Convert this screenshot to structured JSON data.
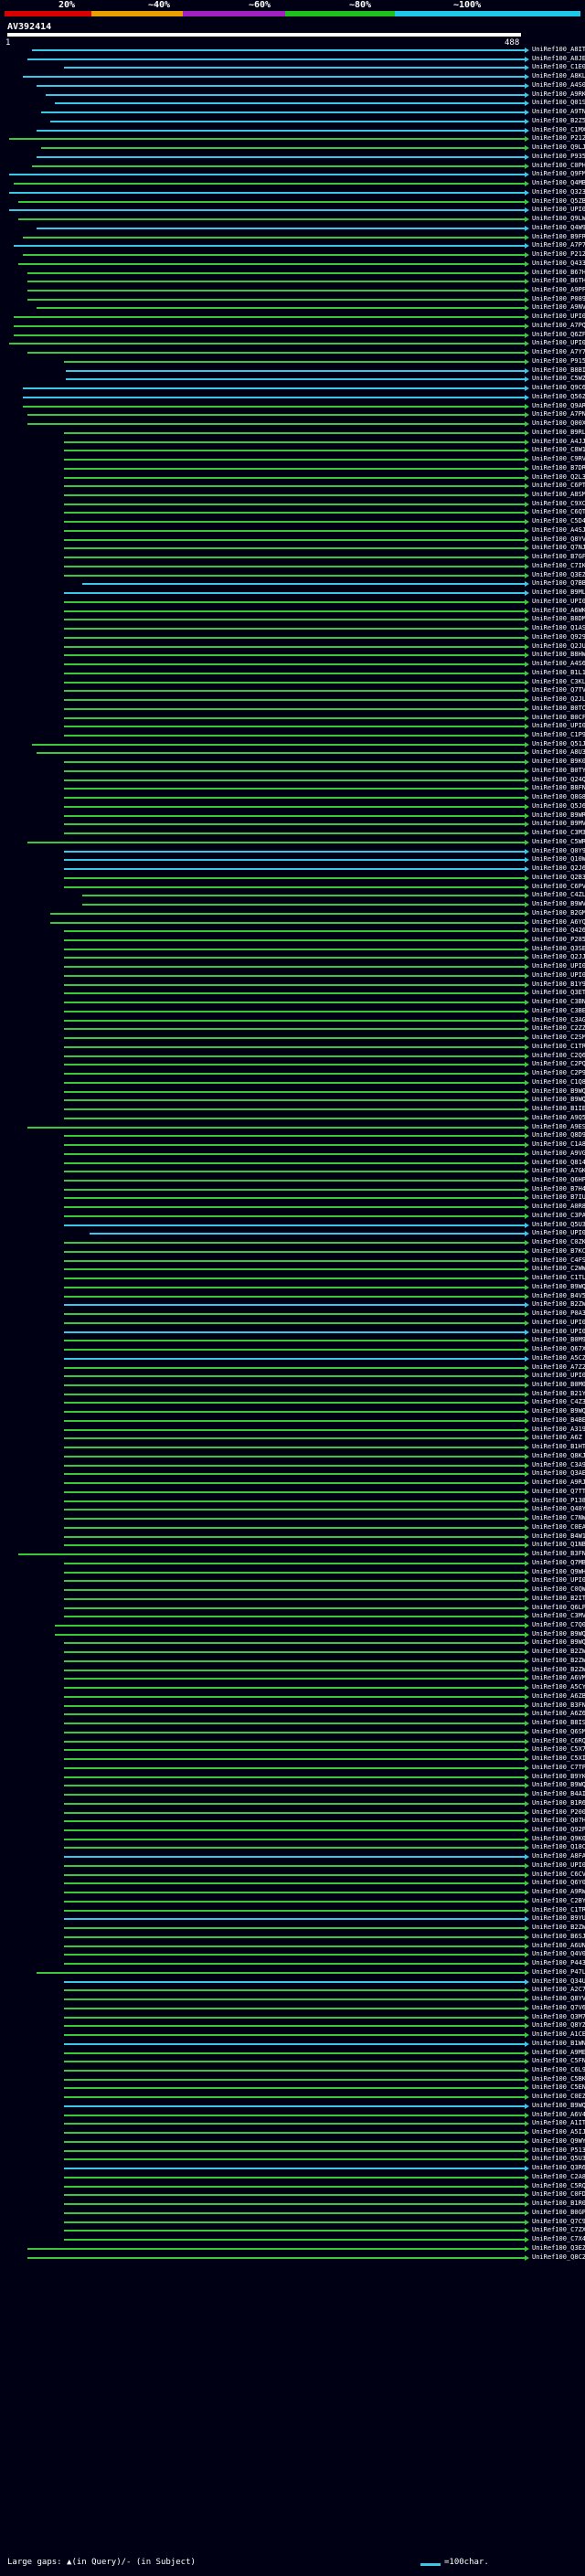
{
  "scale": {
    "labels": [
      "20%",
      "~40%",
      "~60%",
      "~80%",
      "~100%"
    ],
    "colors": [
      "#d80000",
      "#e8a000",
      "#a020c0",
      "#20c020",
      "#20c8e8"
    ]
  },
  "query": {
    "title": "AV392414",
    "start": "1",
    "end": "488"
  },
  "hit_colors": {
    "high": "#3bc8e6",
    "mid": "#3cc83c"
  },
  "hits": [
    "UniRef100_A8ITH8",
    "UniRef100_A8JE91",
    "UniRef100_C1E011",
    "UniRef100_A8KLL2",
    "UniRef100_A4S076",
    "UniRef100_A9RKJ5",
    "UniRef100_Q01SD7",
    "UniRef100_A9TN22",
    "UniRef100_B2Z5C5",
    "UniRef100_C1MX69",
    "UniRef100_P21240",
    "UniRef100_Q9LJE4",
    "UniRef100_P93570",
    "UniRef100_C0PHP3",
    "UniRef100_Q9FMA9",
    "UniRef100_Q4MBS9",
    "UniRef100_Q32361",
    "UniRef100_Q5ZBM5",
    "UniRef100_UPI000...",
    "UniRef100_Q9LWT6",
    "UniRef100_Q4W9E2",
    "UniRef100_B9FR63",
    "UniRef100_A7P765",
    "UniRef100_P21241",
    "UniRef100_Q43311",
    "UniRef100_B67HN2",
    "UniRef100_B6TH83",
    "UniRef100_A9PF58",
    "UniRef100_P08927",
    "UniRef100_A9NV22",
    "UniRef100_UPI000...",
    "UniRef100_A7PQB1",
    "UniRef100_Q6ZF19",
    "UniRef100_UPI000...",
    "UniRef100_A7Y7L7",
    "UniRef100_P91571",
    "UniRef100_B8BIN0",
    "UniRef100_C5WZ20",
    "UniRef100_Q9C667",
    "UniRef100_Q56ZN6",
    "UniRef100_Q9AR01",
    "UniRef100_A7PNB9",
    "UniRef100_Q00X96",
    "UniRef100_B9RLC9",
    "UniRef100_A4JJV3",
    "UniRef100_C8W1D5",
    "UniRef100_C9RVK1",
    "UniRef100_B7DR97",
    "UniRef100_Q2L3E6",
    "UniRef100_C6PT29",
    "UniRef100_A8SMB2",
    "UniRef100_C9XC20",
    "UniRef100_C6QTL2",
    "UniRef100_C5D4F4",
    "UniRef100_A4SJ09",
    "UniRef100_Q8YV84",
    "UniRef100_Q7NJT1",
    "UniRef100_B7GFR6",
    "UniRef100_C7IKN8",
    "UniRef100_Q3EZV4",
    "UniRef100_Q7BBB4",
    "UniRef100_B9MLY9",
    "UniRef100_UPI000...",
    "UniRef100_A6WKH5",
    "UniRef100_B8DM59",
    "UniRef100_Q1AS53",
    "UniRef100_Q929V0",
    "UniRef100_Q2JUN7",
    "UniRef100_B8HWB3",
    "UniRef100_A4S614",
    "UniRef100_B1L1X0",
    "UniRef100_C3KLE3",
    "UniRef100_Q7TVP3",
    "UniRef100_Q2JL43",
    "UniRef100_B0TCK0",
    "UniRef100_B0CFG6",
    "UniRef100_UPI000...",
    "UniRef100_C1P9I2",
    "UniRef100_Q51JJ7",
    "UniRef100_A8U3Q9",
    "UniRef100_B9K082",
    "UniRef100_B0TYE1",
    "UniRef100_Q24QE3",
    "UniRef100_B8FN77",
    "UniRef100_Q8G895",
    "UniRef100_Q5J647",
    "UniRef100_B9WRP5",
    "UniRef100_B9MVA6",
    "UniRef100_C3M3K1",
    "UniRef100_C5WRV5",
    "UniRef100_Q0Y972",
    "UniRef100_Q10WQ4",
    "UniRef100_Q2J6V7",
    "UniRef100_Q2B307",
    "UniRef100_C6PV33",
    "UniRef100_C4ZLB0",
    "UniRef100_B9WVK4",
    "UniRef100_B2GMV2",
    "UniRef100_A6YQS1",
    "UniRef100_Q42694",
    "UniRef100_P28598",
    "UniRef100_Q3SEL8",
    "UniRef100_Q2JJ04",
    "UniRef100_UPI000...",
    "UniRef100_UPI000...",
    "UniRef100_B1Y931",
    "UniRef100_Q3ETE0",
    "UniRef100_C3BNS6",
    "UniRef100_C3BEZ2",
    "UniRef100_C3AGM5",
    "UniRef100_C2ZZH3",
    "UniRef100_C2SMD1",
    "UniRef100_C1TRU4",
    "UniRef100_C2Q612",
    "UniRef100_C2PQB7",
    "UniRef100_C2P9G6",
    "UniRef100_C1Q810",
    "UniRef100_B9WQ07",
    "UniRef100_B9WQ25",
    "UniRef100_B1IEU4",
    "UniRef100_A9Q5U9",
    "UniRef100_A9ESR9",
    "UniRef100_Q8D9D4",
    "UniRef100_C1A8L8",
    "UniRef100_A9VGQ8",
    "UniRef100_Q814B0",
    "UniRef100_A7GKG0",
    "UniRef100_Q6HPF6",
    "UniRef100_B7H407",
    "UniRef100_B7IUT0",
    "UniRef100_A0R8W4",
    "UniRef100_C3PAV1",
    "UniRef100_Q5U323",
    "UniRef100_UPI000...",
    "UniRef100_C0ZKS2",
    "UniRef100_B7KCB7",
    "UniRef100_C4FSE4",
    "UniRef100_C2WW24",
    "UniRef100_C1TLH4",
    "UniRef100_B9WQ02",
    "UniRef100_B4V591",
    "UniRef100_B2ZWT8",
    "UniRef100_P0A337",
    "UniRef100_UPI000...",
    "UniRef100_UPI000...",
    "UniRef100_B0M926",
    "UniRef100_Q67XB0",
    "UniRef100_A5CZ03",
    "UniRef100_A7Z207",
    "UniRef100_UPI000...",
    "UniRef100_B0M033",
    "UniRef100_B21Y02",
    "UniRef100_C4Z3C6",
    "UniRef100_B9WQN9",
    "UniRef100_B4BEQ2",
    "UniRef100_A319B5",
    "UniRef100_A6Z F92",
    "UniRef100_B1HT15",
    "UniRef100_Q8KJ24",
    "UniRef100_C3A9K0",
    "UniRef100_Q3AEQ3",
    "UniRef100_A9RJJ7",
    "UniRef100_Q7TTT6",
    "UniRef100_P13834",
    "UniRef100_Q48YZ3",
    "UniRef100_C7NWZ1",
    "UniRef100_C0EAQ3",
    "UniRef100_B4W1J9",
    "UniRef100_Q1NB53",
    "UniRef100_B3FNQ6",
    "UniRef100_Q7MBC7",
    "UniRef100_Q9WHU8",
    "UniRef100_UPI000...",
    "UniRef100_C0QWM4",
    "UniRef100_B2IT69",
    "UniRef100_Q6LPV7",
    "UniRef100_C3MVM2",
    "UniRef100_C7Q040",
    "UniRef100_B9WQP8",
    "UniRef100_B9WQP7",
    "UniRef100_B2ZWV4",
    "UniRef100_B2ZWV0",
    "UniRef100_B2ZWU2",
    "UniRef100_A6VMY7",
    "UniRef100_A5CYN4",
    "UniRef100_A6ZB11",
    "UniRef100_B3FNQ8",
    "UniRef100_A6Z640",
    "UniRef100_B8IS60",
    "UniRef100_Q6SMZ8",
    "UniRef100_C6RQN3",
    "UniRef100_C5X7N5",
    "UniRef100_C5XIW8",
    "UniRef100_C7TPN8",
    "UniRef100_B9YK72",
    "UniRef100_B9WQQ3",
    "UniRef100_B4AIC4",
    "UniRef100_B1R612",
    "UniRef100_P20021",
    "UniRef100_Q07H27",
    "UniRef100_Q92P57",
    "UniRef100_Q9K0F0",
    "UniRef100_Q18C75",
    "UniRef100_A8FA63",
    "UniRef100_UPI000...",
    "UniRef100_C6CVL6",
    "UniRef100_Q6Y0Y7",
    "UniRef100_A9RWY7",
    "UniRef100_C2BY55",
    "UniRef100_C1TR06",
    "UniRef100_B9YUL0",
    "UniRef100_B2ZWA6",
    "UniRef100_B6SJA8",
    "UniRef100_A6UNR2",
    "UniRef100_Q4V029",
    "UniRef100_P44312",
    "UniRef100_P47LJ1",
    "UniRef100_Q34UZ9",
    "UniRef100_A2C7E2",
    "UniRef100_Q8YVS8",
    "UniRef100_Q7V643",
    "UniRef100_Q3M704",
    "UniRef100_Q8YZ20",
    "UniRef100_A1CEA4",
    "UniRef100_B1WNH0",
    "UniRef100_A9MET1",
    "UniRef100_C5FNS5",
    "UniRef100_C6L9V7",
    "UniRef100_C5BK05",
    "UniRef100_C5EN67",
    "UniRef100_C0EZC4",
    "UniRef100_B9WQR1",
    "UniRef100_A6V427",
    "UniRef100_A1IT87",
    "UniRef100_A5IJR6",
    "UniRef100_Q9WYA6",
    "UniRef100_P51349",
    "UniRef100_Q5U305",
    "UniRef100_Q3R6L5",
    "UniRef100_C2A8Q5",
    "UniRef100_C5RQ00",
    "UniRef100_C0FDP3",
    "UniRef100_B1R088",
    "UniRef100_B0GPB6",
    "UniRef100_Q7C967",
    "UniRef100_C7ZX56",
    "UniRef100_C7X4F2",
    "UniRef100_Q3EZV1",
    "UniRef100_Q8C2F1"
  ],
  "footer": {
    "gaps_text": "Large gaps: ▲(in Query)/- (in Subject)",
    "scale_text": "=100char."
  }
}
